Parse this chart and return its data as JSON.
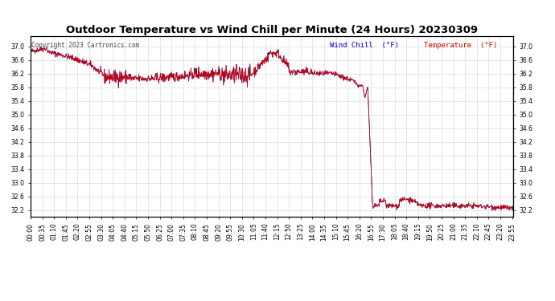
{
  "title": "Outdoor Temperature vs Wind Chill per Minute (24 Hours) 20230309",
  "copyright": "Copyright 2023 Cartronics.com",
  "legend_wind_chill": "Wind Chill  (°F)",
  "legend_temperature": "Temperature  (°F)",
  "wind_chill_color": "#0000cc",
  "temperature_color": "#cc0000",
  "background_color": "#ffffff",
  "grid_color": "#bbbbbb",
  "ylim": [
    32.0,
    37.3
  ],
  "yticks": [
    32.2,
    32.6,
    33.0,
    33.4,
    33.8,
    34.2,
    34.6,
    35.0,
    35.4,
    35.8,
    36.2,
    36.6,
    37.0
  ],
  "title_fontsize": 9.5,
  "tick_fontsize": 5.5,
  "copyright_fontsize": 5.5,
  "legend_fontsize": 6.5
}
